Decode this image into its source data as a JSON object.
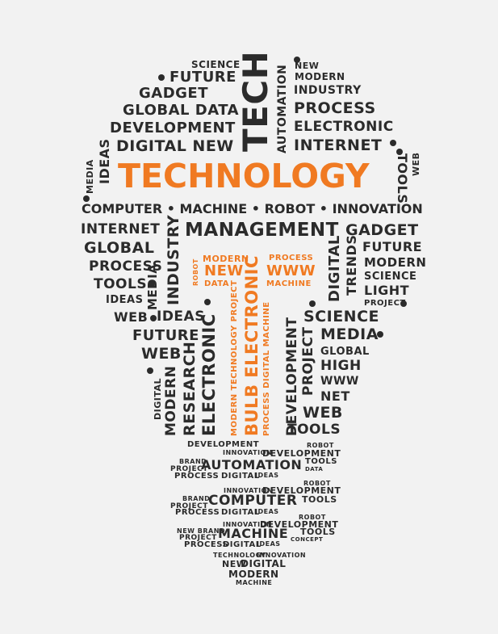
{
  "words": [
    {
      "id": "w01",
      "text": "SCIENCE"
    },
    {
      "id": "w02",
      "text": "FUTURE"
    },
    {
      "id": "w03",
      "text": "GADGET"
    },
    {
      "id": "w04",
      "text": "GLOBAL DATA"
    },
    {
      "id": "w05",
      "text": "DEVELOPMENT"
    },
    {
      "id": "w06",
      "text": "DIGITAL NEW"
    },
    {
      "id": "w07",
      "text": "TECH"
    },
    {
      "id": "w08",
      "text": "AUTOMATION"
    },
    {
      "id": "w09",
      "text": "NEW"
    },
    {
      "id": "w10",
      "text": "MODERN"
    },
    {
      "id": "w11",
      "text": "INDUSTRY"
    },
    {
      "id": "w12",
      "text": "PROCESS"
    },
    {
      "id": "w13",
      "text": "ELECTRONIC"
    },
    {
      "id": "w14",
      "text": "INTERNET"
    },
    {
      "id": "w15",
      "text": "TECHNOLOGY"
    },
    {
      "id": "w16",
      "text": "IDEAS"
    },
    {
      "id": "w17",
      "text": "MEDIA"
    },
    {
      "id": "w18",
      "text": "TOOLS"
    },
    {
      "id": "w19",
      "text": "WEB"
    },
    {
      "id": "w20",
      "text": "COMPUTER • MACHINE • ROBOT • INNOVATION"
    },
    {
      "id": "w21",
      "text": "INTERNET"
    },
    {
      "id": "w22",
      "text": "MANAGEMENT"
    },
    {
      "id": "w23",
      "text": "GADGET"
    },
    {
      "id": "w24",
      "text": "GLOBAL"
    },
    {
      "id": "w25",
      "text": "FUTURE"
    },
    {
      "id": "w26",
      "text": "PROCESS"
    },
    {
      "id": "w27",
      "text": "MODERN"
    },
    {
      "id": "w28",
      "text": "TOOLS"
    },
    {
      "id": "w29",
      "text": "SCIENCE"
    },
    {
      "id": "w30",
      "text": "IDEAS"
    },
    {
      "id": "w31",
      "text": "LIGHT"
    },
    {
      "id": "w32",
      "text": "PROJECT"
    },
    {
      "id": "w33",
      "text": "INDUSTRY"
    },
    {
      "id": "w34",
      "text": "MEDIA"
    },
    {
      "id": "w35",
      "text": "DIGITAL"
    },
    {
      "id": "w36",
      "text": "TRENDS"
    },
    {
      "id": "w37",
      "text": "WEB"
    },
    {
      "id": "w38",
      "text": "IDEAS"
    },
    {
      "id": "w39",
      "text": "SCIENCE"
    },
    {
      "id": "w40",
      "text": "FUTURE"
    },
    {
      "id": "w41",
      "text": "MEDIA"
    },
    {
      "id": "w42",
      "text": "WEB"
    },
    {
      "id": "w43",
      "text": "GLOBAL"
    },
    {
      "id": "w44",
      "text": "HIGH"
    },
    {
      "id": "w45",
      "text": "WWW"
    },
    {
      "id": "w46",
      "text": "NET"
    },
    {
      "id": "w47",
      "text": "WEB"
    },
    {
      "id": "w48",
      "text": "TOOLS"
    },
    {
      "id": "w49",
      "text": "MODERN"
    },
    {
      "id": "w50",
      "text": "ROBOT"
    },
    {
      "id": "w51",
      "text": "NEW"
    },
    {
      "id": "w52",
      "text": "DATA"
    },
    {
      "id": "w53",
      "text": "PROCESS"
    },
    {
      "id": "w54",
      "text": "WWW"
    },
    {
      "id": "w55",
      "text": "MACHINE"
    },
    {
      "id": "w56",
      "text": "MODERN  TECHNOLOGY  PROJECT"
    },
    {
      "id": "w57",
      "text": "BULB ELECTRONIC"
    },
    {
      "id": "w58",
      "text": "PROCESS   DIGITAL   MACHINE"
    },
    {
      "id": "w59",
      "text": "DIGITAL"
    },
    {
      "id": "w60",
      "text": "MODERN"
    },
    {
      "id": "w61",
      "text": "RESEARCH"
    },
    {
      "id": "w62",
      "text": "ELECTRONIC"
    },
    {
      "id": "w63",
      "text": "DEVELOPMENT"
    },
    {
      "id": "w64",
      "text": "PROJECT"
    },
    {
      "id": "w65",
      "text": "DEVELOPMENT"
    },
    {
      "id": "w66",
      "text": "ROBOT"
    },
    {
      "id": "w67",
      "text": "INNOVATION"
    },
    {
      "id": "w68",
      "text": "DEVELOPMENT"
    },
    {
      "id": "w69",
      "text": "BRAND"
    },
    {
      "id": "w70",
      "text": "PROJECT"
    },
    {
      "id": "w71",
      "text": "AUTOMATION"
    },
    {
      "id": "w72",
      "text": "TOOLS"
    },
    {
      "id": "w73",
      "text": "DATA"
    },
    {
      "id": "w74",
      "text": "PROCESS"
    },
    {
      "id": "w75",
      "text": "DIGITAL"
    },
    {
      "id": "w76",
      "text": "IDEAS"
    },
    {
      "id": "w77",
      "text": "ROBOT"
    },
    {
      "id": "w78",
      "text": "INNOVATION"
    },
    {
      "id": "w79",
      "text": "DEVELOPMENT"
    },
    {
      "id": "w80",
      "text": "BRAND"
    },
    {
      "id": "w81",
      "text": "PROJECT"
    },
    {
      "id": "w82",
      "text": "COMPUTER"
    },
    {
      "id": "w83",
      "text": "TOOLS"
    },
    {
      "id": "w84",
      "text": "PROCESS"
    },
    {
      "id": "w85",
      "text": "DIGITAL"
    },
    {
      "id": "w86",
      "text": "IDEAS"
    },
    {
      "id": "w87",
      "text": "ROBOT"
    },
    {
      "id": "w88",
      "text": "INNOVATION"
    },
    {
      "id": "w89",
      "text": "DEVELOPMENT"
    },
    {
      "id": "w90",
      "text": "NEW BRAND"
    },
    {
      "id": "w91",
      "text": "PROJECT"
    },
    {
      "id": "w92",
      "text": "MACHINE"
    },
    {
      "id": "w93",
      "text": "TOOLS"
    },
    {
      "id": "w94",
      "text": "CONCEPT"
    },
    {
      "id": "w95",
      "text": "PROCESS"
    },
    {
      "id": "w96",
      "text": "DIGITAL"
    },
    {
      "id": "w97",
      "text": "IDEAS"
    },
    {
      "id": "w98",
      "text": "TECHNOLOGY"
    },
    {
      "id": "w99",
      "text": "INNOVATION"
    },
    {
      "id": "w100",
      "text": "NEW"
    },
    {
      "id": "w101",
      "text": "DIGITAL"
    },
    {
      "id": "w102",
      "text": "MODERN"
    },
    {
      "id": "w103",
      "text": "MACHINE"
    }
  ],
  "colors": {
    "dark": "#2b2b2b",
    "accent": "#f07a22",
    "background": "#f2f2f2"
  }
}
